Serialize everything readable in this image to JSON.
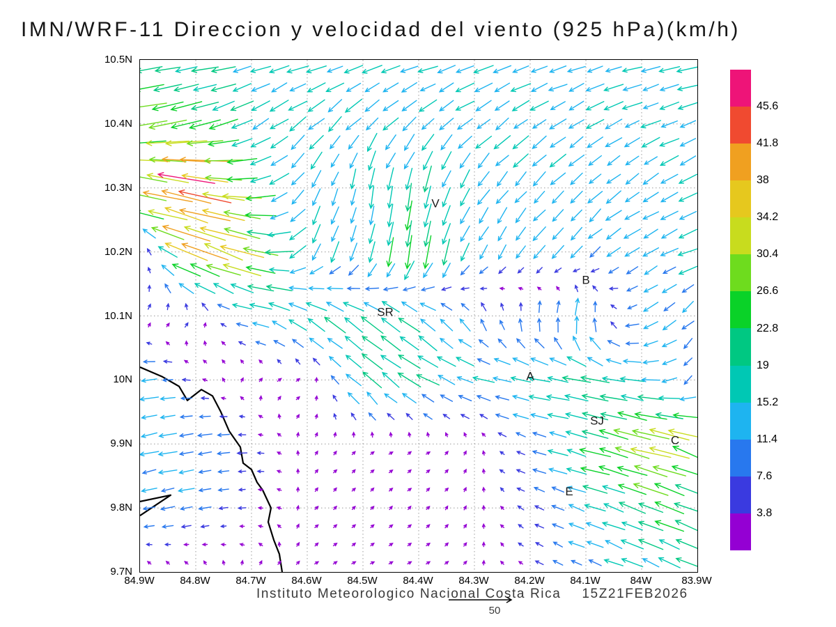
{
  "chart_data": {
    "type": "vector_field",
    "title": "IMN/WRF-11 Direccion y velocidad del viento (925 hPa)(km/h)",
    "units": "km/h",
    "level": "925 hPa",
    "grid": true,
    "legend_position": "right",
    "lon_range": [
      -84.9,
      -83.9
    ],
    "lat_range": [
      9.7,
      10.5
    ],
    "x_ticks": [
      "84.9W",
      "84.8W",
      "84.7W",
      "84.6W",
      "84.5W",
      "84.4W",
      "84.3W",
      "84.2W",
      "84.1W",
      "84W",
      "83.9W"
    ],
    "y_ticks": [
      "10.5N",
      "10.4N",
      "10.3N",
      "10.2N",
      "10.1N",
      "10N",
      "9.9N",
      "9.8N",
      "9.7N"
    ],
    "colorbar": {
      "levels": [
        3.8,
        7.6,
        11.4,
        15.2,
        19,
        22.8,
        26.6,
        30.4,
        34.2,
        38,
        41.8,
        45.6
      ],
      "colors": [
        "#9400d3",
        "#3a3ae0",
        "#2878ee",
        "#1eb4f0",
        "#00c8b4",
        "#00c882",
        "#0ad228",
        "#6edc1e",
        "#c8dc1e",
        "#e6c81e",
        "#f0a020",
        "#f04a30",
        "#ee1478"
      ]
    },
    "stations": [
      {
        "label": "V",
        "lon": -84.37,
        "lat": 10.27
      },
      {
        "label": "SR",
        "lon": -84.46,
        "lat": 10.1
      },
      {
        "label": "B",
        "lon": -84.1,
        "lat": 10.15
      },
      {
        "label": "A",
        "lon": -84.2,
        "lat": 10.0
      },
      {
        "label": "SJ",
        "lon": -84.08,
        "lat": 9.93
      },
      {
        "label": "C",
        "lon": -83.94,
        "lat": 9.9
      },
      {
        "label": "E",
        "lon": -84.13,
        "lat": 9.82
      }
    ],
    "coastline": [
      [
        -84.9,
        10.02
      ],
      [
        -84.86,
        10.005
      ],
      [
        -84.83,
        9.99
      ],
      [
        -84.815,
        9.968
      ],
      [
        -84.79,
        9.985
      ],
      [
        -84.77,
        9.975
      ],
      [
        -84.755,
        9.95
      ],
      [
        -84.74,
        9.92
      ],
      [
        -84.72,
        9.895
      ],
      [
        -84.715,
        9.87
      ],
      [
        -84.7,
        9.86
      ],
      [
        -84.69,
        9.84
      ],
      [
        -84.68,
        9.828
      ],
      [
        -84.665,
        9.8
      ],
      [
        -84.67,
        9.778
      ],
      [
        -84.66,
        9.75
      ],
      [
        -84.65,
        9.728
      ],
      [
        -84.645,
        9.7
      ]
    ],
    "peninsula": [
      [
        -84.9,
        9.788
      ],
      [
        -84.845,
        9.82
      ],
      [
        -84.9,
        9.81
      ]
    ],
    "wind_grid": {
      "lons": [
        -84.9,
        -84.8,
        -84.7,
        -84.6,
        -84.5,
        -84.4,
        -84.3,
        -84.2,
        -84.1,
        -84.0,
        -83.9
      ],
      "lats": [
        10.5,
        10.4,
        10.3,
        10.2,
        10.1,
        10.0,
        9.9,
        9.8,
        9.7
      ],
      "u": [
        [
          -20,
          -18,
          -16,
          -15,
          -15,
          -15,
          -14,
          -14,
          -14,
          -15,
          -15
        ],
        [
          -26,
          -28,
          -14,
          -11,
          -10,
          -11,
          -12,
          -12,
          -13,
          -13,
          -14
        ],
        [
          -30,
          -44,
          -22,
          -6,
          -2,
          -4,
          -8,
          -10,
          -10,
          -11,
          -12
        ],
        [
          3,
          -36,
          -32,
          -8,
          -4,
          -4,
          -6,
          -8,
          -9,
          -12,
          -14
        ],
        [
          3,
          4,
          -12,
          -18,
          -16,
          -14,
          -4,
          2,
          4,
          -10,
          -8
        ],
        [
          -14,
          -4,
          2,
          3,
          -14,
          -16,
          -14,
          -18,
          -20,
          -16,
          -4
        ],
        [
          -14,
          -13,
          -6,
          1,
          2,
          2,
          1,
          -8,
          -20,
          -32,
          -30
        ],
        [
          -11,
          -10,
          -4,
          1,
          2,
          2,
          1,
          -6,
          -14,
          -22,
          -20
        ],
        [
          0,
          1,
          1,
          1,
          2,
          2,
          1,
          -4,
          -10,
          -14,
          -16
        ]
      ],
      "v": [
        [
          -3,
          -3,
          -4,
          -4,
          -4,
          -4,
          -5,
          -4,
          -4,
          -3,
          -3
        ],
        [
          -5,
          -7,
          -8,
          -10,
          -11,
          -10,
          -8,
          -8,
          -7,
          -6,
          -5
        ],
        [
          6,
          10,
          -2,
          -12,
          -14,
          -20,
          -12,
          -10,
          -9,
          -8,
          -7
        ],
        [
          4,
          14,
          10,
          -12,
          -16,
          -24,
          -12,
          -10,
          -9,
          -6,
          -5
        ],
        [
          3,
          4,
          2,
          10,
          12,
          12,
          8,
          10,
          16,
          -6,
          -8
        ],
        [
          -2,
          1,
          2,
          2,
          12,
          10,
          4,
          3,
          4,
          2,
          -8
        ],
        [
          -3,
          -2,
          0,
          2,
          2,
          1,
          2,
          3,
          5,
          8,
          10
        ],
        [
          -2,
          -2,
          0,
          1,
          2,
          2,
          2,
          3,
          5,
          8,
          8
        ],
        [
          2,
          1,
          1,
          1,
          1,
          1,
          1,
          2,
          4,
          6,
          7
        ]
      ]
    },
    "reference_speed": 50
  },
  "footer": {
    "institute": "Instituto Meteorologico Nacional Costa Rica",
    "datetime": "15Z21FEB2026",
    "reference_vector_label": "50"
  }
}
